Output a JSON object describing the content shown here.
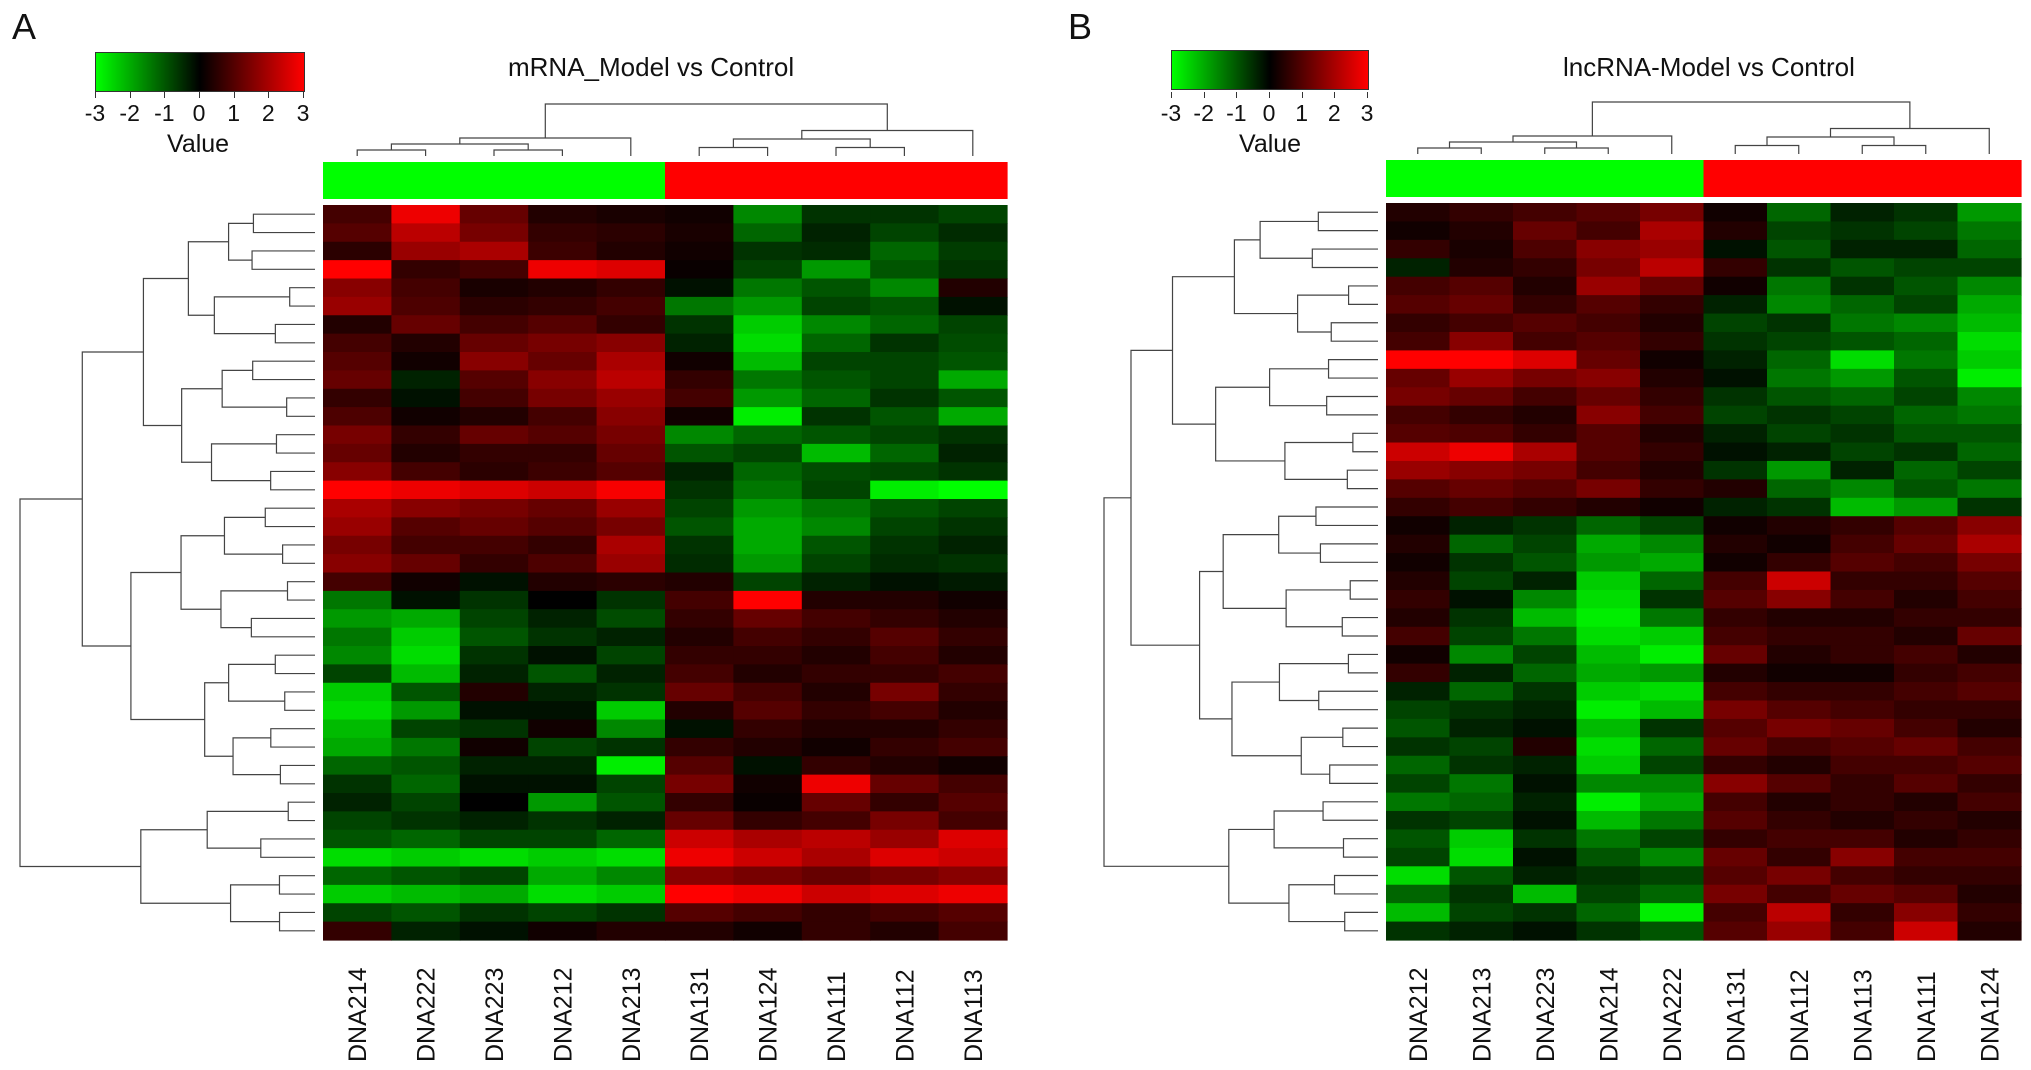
{
  "panels": [
    {
      "letter": "A",
      "title": "mRNA_Model vs Control",
      "legend": {
        "ticks": [
          "-3",
          "-2",
          "-1",
          "0",
          "1",
          "2",
          "3"
        ],
        "label": "Value"
      }
    },
    {
      "letter": "B",
      "title": "lncRNA-Model vs Control",
      "legend": {
        "ticks": [
          "-3",
          "-2",
          "-1",
          "0",
          "1",
          "2",
          "3"
        ],
        "label": "Value"
      }
    }
  ],
  "colors": {
    "low": "#00ff00",
    "mid": "#000000",
    "high": "#ff0000",
    "group_model": "#00ff00",
    "group_control": "#ff0000"
  },
  "chart_data": [
    {
      "type": "heatmap",
      "title": "mRNA_Model vs Control",
      "color_scale": {
        "min": -3,
        "max": 3,
        "colors": [
          "#00ff00",
          "#000000",
          "#ff0000"
        ],
        "label": "Value"
      },
      "columns": [
        "DNA214",
        "DNA222",
        "DNA223",
        "DNA212",
        "DNA213",
        "DNA131",
        "DNA124",
        "DNA111",
        "DNA112",
        "DNA113"
      ],
      "column_groups": [
        "green",
        "green",
        "green",
        "green",
        "green",
        "red",
        "red",
        "red",
        "red",
        "red"
      ],
      "rows": 40,
      "values": [
        [
          0.8,
          2.8,
          1.2,
          0.4,
          0.3,
          0.2,
          -1.6,
          -0.6,
          -0.6,
          -0.8
        ],
        [
          1.0,
          2.2,
          1.4,
          0.6,
          0.5,
          0.3,
          -1.2,
          -0.4,
          -0.8,
          -0.5
        ],
        [
          0.5,
          1.8,
          2.0,
          0.7,
          0.4,
          0.2,
          -0.6,
          -0.5,
          -1.2,
          -0.7
        ],
        [
          3.0,
          0.6,
          0.8,
          2.8,
          2.6,
          0.1,
          -0.8,
          -1.8,
          -1.0,
          -0.6
        ],
        [
          1.6,
          0.8,
          0.3,
          0.4,
          0.6,
          -0.2,
          -1.4,
          -1.0,
          -1.6,
          0.4
        ],
        [
          1.8,
          0.9,
          0.5,
          0.6,
          0.8,
          -1.4,
          -1.8,
          -0.8,
          -1.0,
          -0.2
        ],
        [
          0.4,
          1.2,
          0.8,
          1.0,
          0.6,
          -0.6,
          -2.4,
          -1.6,
          -1.2,
          -0.8
        ],
        [
          0.8,
          0.4,
          1.2,
          1.4,
          1.6,
          -0.4,
          -2.6,
          -1.2,
          -0.6,
          -0.9
        ],
        [
          1.0,
          0.2,
          1.6,
          1.2,
          2.0,
          0.2,
          -2.2,
          -0.8,
          -0.8,
          -1.0
        ],
        [
          1.2,
          -0.4,
          1.0,
          1.6,
          2.2,
          0.6,
          -1.4,
          -1.0,
          -0.8,
          -2.0
        ],
        [
          0.6,
          -0.2,
          0.8,
          1.4,
          1.8,
          0.8,
          -1.8,
          -1.2,
          -0.6,
          -1.0
        ],
        [
          0.9,
          0.2,
          0.4,
          0.8,
          1.6,
          0.2,
          -2.8,
          -0.6,
          -1.0,
          -2.0
        ],
        [
          1.4,
          0.6,
          1.2,
          1.0,
          1.4,
          -1.6,
          -1.2,
          -1.0,
          -0.8,
          -0.6
        ],
        [
          1.2,
          0.4,
          0.6,
          0.6,
          1.2,
          -1.0,
          -0.8,
          -2.2,
          -1.2,
          -0.4
        ],
        [
          1.6,
          0.8,
          0.5,
          0.7,
          1.0,
          -0.4,
          -1.2,
          -0.9,
          -0.8,
          -0.6
        ],
        [
          3.0,
          2.8,
          2.6,
          2.4,
          2.9,
          -0.6,
          -1.4,
          -0.8,
          -2.8,
          -3.0
        ],
        [
          2.0,
          1.6,
          1.4,
          1.2,
          1.8,
          -0.8,
          -1.8,
          -1.4,
          -1.0,
          -0.8
        ],
        [
          1.8,
          1.0,
          1.2,
          1.0,
          1.4,
          -1.0,
          -2.0,
          -1.6,
          -0.8,
          -0.6
        ],
        [
          1.4,
          0.8,
          0.8,
          0.6,
          2.0,
          -0.6,
          -2.0,
          -1.0,
          -0.6,
          -0.4
        ],
        [
          1.6,
          1.2,
          0.6,
          0.9,
          1.8,
          -0.5,
          -1.8,
          -0.8,
          -0.5,
          -0.6
        ],
        [
          0.8,
          0.2,
          -0.2,
          0.4,
          0.5,
          0.4,
          -0.8,
          -0.4,
          -0.2,
          -0.3
        ],
        [
          -1.4,
          -0.2,
          -0.6,
          0.0,
          -0.6,
          0.8,
          3.0,
          0.4,
          0.4,
          0.2
        ],
        [
          -1.8,
          -2.0,
          -0.8,
          -0.4,
          -0.9,
          0.6,
          1.2,
          0.8,
          0.6,
          0.4
        ],
        [
          -1.4,
          -2.4,
          -1.0,
          -0.6,
          -0.4,
          0.4,
          0.8,
          0.6,
          1.0,
          0.6
        ],
        [
          -1.6,
          -2.6,
          -0.6,
          -0.2,
          -0.8,
          0.6,
          0.6,
          0.4,
          0.8,
          0.4
        ],
        [
          -0.8,
          -2.2,
          -0.4,
          -1.0,
          -0.4,
          0.8,
          0.4,
          0.6,
          0.6,
          0.8
        ],
        [
          -2.4,
          -1.0,
          0.4,
          -0.4,
          -0.6,
          1.2,
          0.8,
          0.4,
          1.4,
          0.6
        ],
        [
          -2.6,
          -1.8,
          -0.2,
          -0.2,
          -2.4,
          0.4,
          1.0,
          0.6,
          0.8,
          0.4
        ],
        [
          -2.2,
          -0.8,
          -0.6,
          0.2,
          -1.6,
          -0.2,
          0.6,
          0.4,
          0.4,
          0.6
        ],
        [
          -2.0,
          -1.4,
          0.2,
          -0.8,
          -0.6,
          0.6,
          0.4,
          0.2,
          0.6,
          0.8
        ],
        [
          -1.2,
          -1.0,
          -0.4,
          -0.4,
          -2.8,
          1.0,
          -0.2,
          0.6,
          0.4,
          0.2
        ],
        [
          -0.6,
          -1.2,
          -0.2,
          -0.2,
          -0.8,
          1.4,
          0.2,
          2.8,
          1.2,
          0.8
        ],
        [
          -0.4,
          -0.8,
          0.0,
          -1.8,
          -1.0,
          0.6,
          0.1,
          1.2,
          0.6,
          1.0
        ],
        [
          -0.8,
          -0.6,
          -0.4,
          -0.6,
          -0.4,
          1.2,
          0.6,
          0.8,
          1.4,
          0.8
        ],
        [
          -1.0,
          -1.2,
          -0.8,
          -0.8,
          -1.2,
          2.4,
          2.0,
          2.2,
          1.8,
          2.6
        ],
        [
          -2.6,
          -2.4,
          -2.6,
          -2.4,
          -2.6,
          2.8,
          2.4,
          2.0,
          2.6,
          2.4
        ],
        [
          -1.2,
          -1.0,
          -0.8,
          -2.0,
          -1.6,
          1.6,
          1.4,
          1.2,
          1.4,
          1.6
        ],
        [
          -2.4,
          -2.2,
          -2.0,
          -2.6,
          -2.4,
          3.0,
          2.8,
          2.4,
          2.6,
          2.8
        ],
        [
          -0.8,
          -1.0,
          -0.6,
          -0.8,
          -0.6,
          1.0,
          0.8,
          0.6,
          0.8,
          1.0
        ],
        [
          0.6,
          -0.4,
          -0.2,
          0.2,
          0.4,
          0.4,
          0.2,
          0.6,
          0.4,
          0.8
        ]
      ]
    },
    {
      "type": "heatmap",
      "title": "lncRNA-Model vs Control",
      "color_scale": {
        "min": -3,
        "max": 3,
        "colors": [
          "#00ff00",
          "#000000",
          "#ff0000"
        ],
        "label": "Value"
      },
      "columns": [
        "DNA212",
        "DNA213",
        "DNA223",
        "DNA214",
        "DNA222",
        "DNA131",
        "DNA112",
        "DNA113",
        "DNA111",
        "DNA124"
      ],
      "column_groups": [
        "green",
        "green",
        "green",
        "green",
        "green",
        "red",
        "red",
        "red",
        "red",
        "red"
      ],
      "rows": 40,
      "values": [
        [
          0.4,
          0.6,
          0.8,
          1.0,
          1.4,
          0.2,
          -1.2,
          -0.4,
          -0.6,
          -1.8
        ],
        [
          0.2,
          0.4,
          1.2,
          0.8,
          2.0,
          0.4,
          -0.8,
          -0.6,
          -0.8,
          -1.4
        ],
        [
          0.6,
          0.3,
          0.9,
          1.6,
          1.8,
          -0.2,
          -1.0,
          -0.4,
          -0.4,
          -1.2
        ],
        [
          -0.4,
          0.4,
          0.6,
          1.4,
          2.2,
          0.6,
          -0.6,
          -1.0,
          -0.8,
          -0.8
        ],
        [
          0.8,
          1.0,
          0.4,
          1.8,
          1.2,
          0.2,
          -1.4,
          -0.6,
          -1.0,
          -1.6
        ],
        [
          1.0,
          1.2,
          0.6,
          1.0,
          0.6,
          -0.4,
          -1.6,
          -1.2,
          -0.8,
          -2.0
        ],
        [
          0.6,
          0.8,
          1.0,
          0.8,
          0.4,
          -0.8,
          -0.6,
          -1.4,
          -1.6,
          -2.2
        ],
        [
          0.8,
          1.6,
          0.8,
          1.0,
          0.6,
          -0.6,
          -0.8,
          -1.0,
          -1.2,
          -2.6
        ],
        [
          3.0,
          3.0,
          2.6,
          1.2,
          0.2,
          -0.4,
          -1.2,
          -2.6,
          -1.4,
          -2.4
        ],
        [
          1.2,
          1.8,
          1.4,
          1.6,
          0.4,
          -0.2,
          -1.4,
          -1.8,
          -1.0,
          -2.8
        ],
        [
          1.4,
          1.2,
          0.8,
          1.2,
          0.6,
          -0.6,
          -1.0,
          -1.2,
          -0.8,
          -1.6
        ],
        [
          0.8,
          0.6,
          0.4,
          1.6,
          0.8,
          -0.8,
          -0.6,
          -0.8,
          -1.2,
          -1.4
        ],
        [
          1.0,
          0.9,
          0.6,
          1.0,
          0.4,
          -0.4,
          -0.8,
          -0.6,
          -1.0,
          -1.0
        ],
        [
          2.4,
          2.8,
          2.0,
          1.0,
          0.6,
          -0.2,
          -0.4,
          -0.8,
          -0.6,
          -1.2
        ],
        [
          1.8,
          1.6,
          1.4,
          0.8,
          0.4,
          -0.6,
          -1.8,
          -0.4,
          -1.2,
          -0.8
        ],
        [
          1.0,
          1.2,
          1.0,
          1.4,
          0.6,
          0.4,
          -1.2,
          -1.6,
          -1.0,
          -1.4
        ],
        [
          0.6,
          0.8,
          0.6,
          0.4,
          0.2,
          -0.4,
          -0.6,
          -2.2,
          -1.8,
          -0.6
        ],
        [
          0.2,
          -0.4,
          -0.6,
          -1.2,
          -0.8,
          0.2,
          0.4,
          0.6,
          1.0,
          1.6
        ],
        [
          0.4,
          -1.2,
          -0.8,
          -2.0,
          -1.6,
          0.4,
          0.2,
          0.8,
          1.2,
          2.0
        ],
        [
          0.2,
          -0.6,
          -1.0,
          -1.8,
          -2.0,
          0.2,
          0.6,
          1.0,
          0.8,
          1.4
        ],
        [
          0.4,
          -0.8,
          -0.4,
          -2.4,
          -1.2,
          0.8,
          2.4,
          0.6,
          0.6,
          1.0
        ],
        [
          0.6,
          -0.2,
          -1.6,
          -2.6,
          -0.6,
          1.0,
          1.6,
          0.8,
          0.4,
          0.8
        ],
        [
          0.4,
          -0.6,
          -2.2,
          -2.8,
          -1.4,
          0.6,
          0.4,
          0.4,
          0.6,
          0.6
        ],
        [
          0.8,
          -0.8,
          -1.4,
          -2.6,
          -2.4,
          0.8,
          0.6,
          0.6,
          0.4,
          1.2
        ],
        [
          0.2,
          -1.6,
          -0.8,
          -2.2,
          -2.8,
          1.2,
          0.4,
          0.6,
          0.8,
          0.4
        ],
        [
          0.6,
          -0.4,
          -1.2,
          -2.0,
          -1.8,
          0.4,
          0.2,
          0.2,
          0.6,
          0.8
        ],
        [
          -0.4,
          -1.2,
          -0.6,
          -2.4,
          -2.6,
          0.8,
          0.6,
          0.6,
          0.8,
          1.0
        ],
        [
          -0.8,
          -0.6,
          -0.4,
          -2.8,
          -2.2,
          1.4,
          1.0,
          0.8,
          0.6,
          0.6
        ],
        [
          -1.0,
          -0.4,
          -0.2,
          -2.2,
          -0.6,
          1.0,
          1.4,
          1.2,
          0.8,
          0.4
        ],
        [
          -0.6,
          -0.8,
          0.4,
          -2.6,
          -1.2,
          1.2,
          0.8,
          1.0,
          1.2,
          0.8
        ],
        [
          -1.2,
          -0.6,
          -0.4,
          -2.4,
          -0.8,
          0.6,
          0.4,
          0.8,
          0.8,
          1.0
        ],
        [
          -0.8,
          -1.4,
          -0.2,
          -1.6,
          -1.6,
          1.6,
          1.0,
          0.6,
          1.0,
          0.6
        ],
        [
          -1.4,
          -1.2,
          -0.4,
          -2.8,
          -2.0,
          0.8,
          0.4,
          0.6,
          0.4,
          0.8
        ],
        [
          -0.6,
          -0.8,
          -0.2,
          -2.2,
          -1.4,
          1.0,
          0.6,
          0.4,
          0.6,
          0.4
        ],
        [
          -1.0,
          -2.4,
          -0.6,
          -1.4,
          -0.8,
          0.6,
          0.8,
          0.8,
          0.4,
          0.6
        ],
        [
          -0.8,
          -2.6,
          -0.2,
          -1.0,
          -1.6,
          1.2,
          0.6,
          1.6,
          0.8,
          0.8
        ],
        [
          -2.6,
          -1.0,
          -0.4,
          -0.6,
          -0.8,
          1.0,
          1.4,
          0.8,
          0.6,
          0.6
        ],
        [
          -1.2,
          -0.6,
          -2.2,
          -0.8,
          -1.2,
          1.4,
          0.8,
          1.2,
          1.0,
          0.4
        ],
        [
          -2.2,
          -0.8,
          -0.6,
          -1.2,
          -2.8,
          0.8,
          2.2,
          0.6,
          1.6,
          0.6
        ],
        [
          -0.6,
          -0.4,
          -0.2,
          -0.6,
          -1.0,
          1.0,
          1.8,
          0.8,
          2.4,
          0.4
        ]
      ]
    }
  ]
}
